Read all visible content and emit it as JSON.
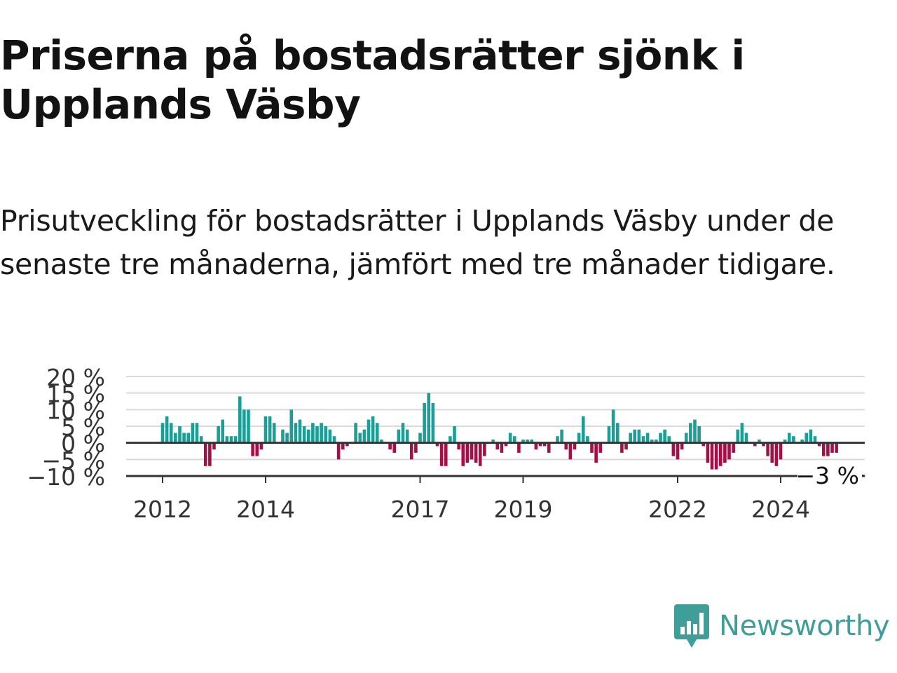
{
  "header": {
    "title": "Priserna på bostadsrätter sjönk i Upplands Väsby",
    "subtitle": "Prisutveckling för bostadsrätter i Upplands Väsby under de senaste tre månaderna, jämfört med tre månader tidigare."
  },
  "colors": {
    "positive": "#1a9e95",
    "negative": "#a50f45",
    "grid": "#d9d9d9",
    "axis": "#333333",
    "brand": "#3f9e97"
  },
  "brand": {
    "icon": "newsworthy-logo-icon",
    "name": "Newsworthy"
  },
  "chart_data": {
    "type": "bar",
    "title": "",
    "xlabel": "",
    "ylabel": "",
    "ylim": [
      -10,
      20
    ],
    "yticks": [
      20,
      15,
      10,
      5,
      0,
      -5,
      -10
    ],
    "ytick_labels": [
      "20 %",
      "15 %",
      "10 %",
      "5 %",
      "0 %",
      "−5 %",
      "−10 %"
    ],
    "xtick_labels": [
      "2012",
      "2014",
      "2017",
      "2019",
      "2022",
      "2024"
    ],
    "grid": true,
    "start": "2012-01",
    "last_value_label": "−3 %",
    "values": [
      6,
      8,
      6,
      3,
      5,
      3,
      3,
      6,
      6,
      2,
      -7,
      -7,
      -2,
      5,
      7,
      2,
      2,
      2,
      14,
      10,
      10,
      -4,
      -4,
      -2,
      8,
      8,
      6,
      0,
      4,
      3,
      10,
      6,
      7,
      5,
      4,
      6,
      5,
      6,
      5,
      4,
      2,
      -5,
      -2,
      -1,
      0,
      6,
      3,
      4,
      7,
      8,
      6,
      1,
      0,
      -2,
      -3,
      4,
      6,
      4,
      -5,
      -3,
      3,
      12,
      15,
      12,
      -1,
      -7,
      -7,
      2,
      5,
      -2,
      -7,
      -6,
      -5,
      -6,
      -7,
      -4,
      0,
      1,
      -2,
      -3,
      -1,
      3,
      2,
      -3,
      1,
      1,
      1,
      -2,
      -1,
      -1,
      -3,
      0,
      2,
      4,
      -2,
      -5,
      -2,
      3,
      8,
      2,
      -3,
      -6,
      -3,
      0,
      5,
      10,
      6,
      -3,
      -2,
      3,
      4,
      4,
      2,
      3,
      1,
      1,
      3,
      4,
      2,
      -4,
      -5,
      -2,
      3,
      6,
      7,
      5,
      -1,
      -6,
      -8,
      -8,
      -7,
      -6,
      -5,
      -3,
      4,
      6,
      3,
      0,
      -1,
      1,
      -1,
      -4,
      -6,
      -7,
      -5,
      1,
      3,
      2,
      0,
      1,
      3,
      4,
      2,
      -1,
      -4,
      -4,
      -3,
      -3
    ]
  }
}
